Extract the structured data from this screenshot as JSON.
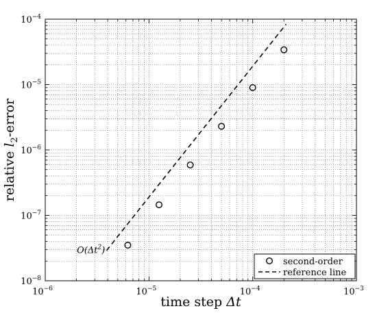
{
  "chart_data": {
    "type": "scatter",
    "x_scale": "log",
    "y_scale": "log",
    "xlim": [
      1e-06,
      0.001
    ],
    "ylim": [
      1e-08,
      0.0001
    ],
    "grid": true,
    "grid_style": "dotted, major and minor",
    "xlabel": "time step Δt",
    "ylabel": "relative l₂-error",
    "x_tick_values": [
      1e-06,
      1e-05,
      0.0001,
      0.001
    ],
    "x_tick_labels": [
      {
        "base": "10",
        "exp": "−6"
      },
      {
        "base": "10",
        "exp": "−5"
      },
      {
        "base": "10",
        "exp": "−4"
      },
      {
        "base": "10",
        "exp": "−3"
      }
    ],
    "y_tick_values": [
      1e-08,
      1e-07,
      1e-06,
      1e-05,
      0.0001
    ],
    "y_tick_labels": [
      {
        "base": "10",
        "exp": "−8"
      },
      {
        "base": "10",
        "exp": "−7"
      },
      {
        "base": "10",
        "exp": "−6"
      },
      {
        "base": "10",
        "exp": "−5"
      },
      {
        "base": "10",
        "exp": "−4"
      }
    ],
    "series": [
      {
        "name": "second-order",
        "style": "circle-markers",
        "x": [
          6.25e-06,
          1.25e-05,
          2.5e-05,
          5e-05,
          0.0001,
          0.0002
        ],
        "y": [
          3.5e-08,
          1.45e-07,
          5.9e-07,
          2.3e-06,
          9e-06,
          3.4e-05
        ]
      },
      {
        "name": "reference line",
        "style": "dashed-line",
        "x": [
          3.9e-06,
          0.00021
        ],
        "y": [
          2.9e-08,
          8.4e-05
        ]
      }
    ],
    "annotations": [
      {
        "text": "O(Δt²)",
        "x": 3.5e-06,
        "y": 3e-08
      }
    ],
    "legend_position": "bottom-right",
    "colors": {
      "markers": "#000000",
      "line": "#000000",
      "grid": "#555555",
      "background": "#ffffff"
    }
  }
}
